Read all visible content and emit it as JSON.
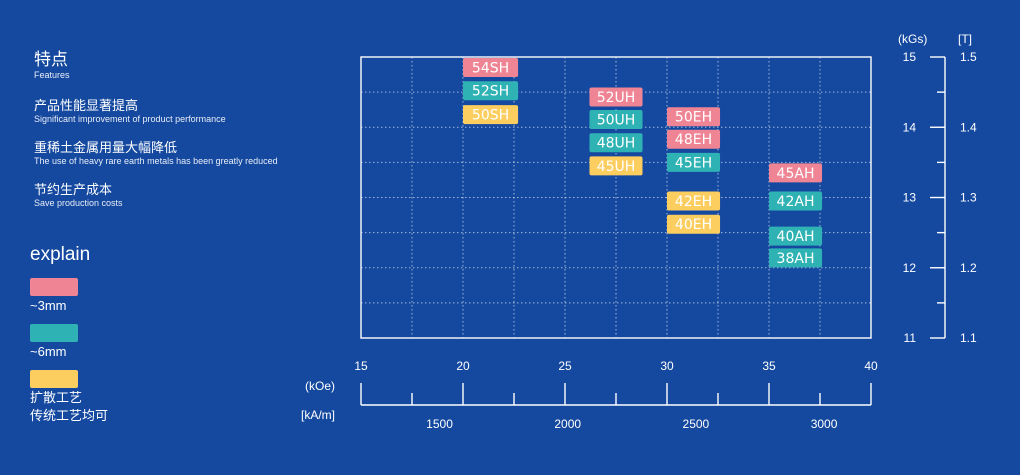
{
  "features": {
    "title": "特点",
    "title_en": "Features",
    "items": [
      {
        "zh": "产品性能显著提高",
        "en": "Significant improvement of product performance"
      },
      {
        "zh": "重稀土金属用量大幅降低",
        "en": "The use of heavy rare earth metals has been greatly reduced"
      },
      {
        "zh": "节约生产成本",
        "en": "Save production costs"
      }
    ]
  },
  "explain": {
    "title": "explain",
    "legend": [
      {
        "label": "~3mm",
        "color": "#ef8494"
      },
      {
        "label": "~6mm",
        "color": "#2fb2b4"
      },
      {
        "label": "扩散工艺",
        "label2": "传统工艺均可",
        "color": "#fccd5f"
      }
    ]
  },
  "chart_data": {
    "type": "table",
    "x_unit_top": "(kOe)",
    "x_unit_bottom": "[kA/m]",
    "y_unit_left": "(kGs)",
    "y_unit_right": "[T]",
    "xlim": [
      15,
      40
    ],
    "ylim": [
      11,
      15
    ],
    "x_ticks": [
      "15",
      "20",
      "25",
      "30",
      "35",
      "40"
    ],
    "x_ticks_bottom": [
      {
        "label": "1500",
        "value": 1500
      },
      {
        "label": "2000",
        "value": 2000
      },
      {
        "label": "2500",
        "value": 2500
      },
      {
        "label": "3000",
        "value": 3000
      }
    ],
    "y_ticks": [
      "15",
      "14",
      "13",
      "12",
      "11"
    ],
    "y_ticks_right": [
      "1.5",
      "1.4",
      "1.3",
      "1.2",
      "1.1"
    ],
    "grades": [
      {
        "label": "54SH",
        "color": "pink",
        "hcj": [
          20,
          22.7
        ],
        "br": 14.85
      },
      {
        "label": "52SH",
        "color": "teal",
        "hcj": [
          20,
          22.7
        ],
        "br": 14.52
      },
      {
        "label": "50SH",
        "color": "yellow",
        "hcj": [
          20,
          22.7
        ],
        "br": 14.18
      },
      {
        "label": "52UH",
        "color": "pink",
        "hcj": [
          26.2,
          28.8
        ],
        "br": 14.43
      },
      {
        "label": "50UH",
        "color": "teal",
        "hcj": [
          26.2,
          28.8
        ],
        "br": 14.11
      },
      {
        "label": "48UH",
        "color": "teal",
        "hcj": [
          26.2,
          28.8
        ],
        "br": 13.78
      },
      {
        "label": "45UH",
        "color": "yellow",
        "hcj": [
          26.2,
          28.8
        ],
        "br": 13.45
      },
      {
        "label": "50EH",
        "color": "pink",
        "hcj": [
          30,
          32.6
        ],
        "br": 14.15
      },
      {
        "label": "48EH",
        "color": "pink",
        "hcj": [
          30,
          32.6
        ],
        "br": 13.83
      },
      {
        "label": "45EH",
        "color": "teal",
        "hcj": [
          30,
          32.6
        ],
        "br": 13.5
      },
      {
        "label": "42EH",
        "color": "yellow",
        "hcj": [
          30,
          32.6
        ],
        "br": 12.95
      },
      {
        "label": "40EH",
        "color": "yellow",
        "hcj": [
          30,
          32.6
        ],
        "br": 12.62
      },
      {
        "label": "45AH",
        "color": "pink",
        "hcj": [
          35,
          37.6
        ],
        "br": 13.35
      },
      {
        "label": "42AH",
        "color": "teal",
        "hcj": [
          35,
          37.6
        ],
        "br": 12.95
      },
      {
        "label": "40AH",
        "color": "teal",
        "hcj": [
          35,
          37.6
        ],
        "br": 12.45
      },
      {
        "label": "38AH",
        "color": "teal",
        "hcj": [
          35,
          37.6
        ],
        "br": 12.14
      }
    ],
    "colors": {
      "pink": "#ef8494",
      "teal": "#2fb2b4",
      "yellow": "#fccd5f"
    }
  }
}
